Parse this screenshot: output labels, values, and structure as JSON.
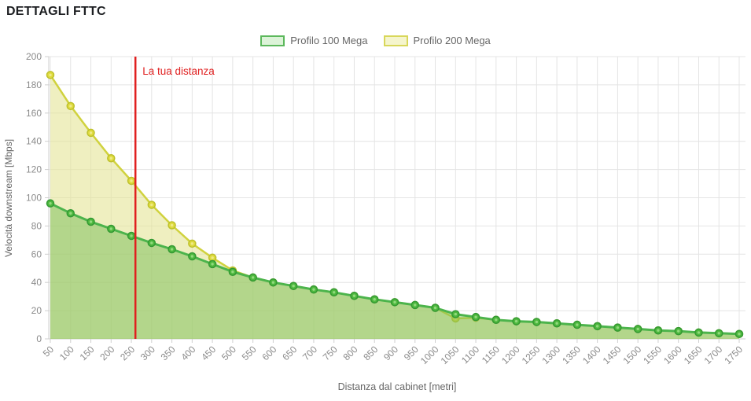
{
  "chart_data": {
    "type": "line",
    "title": "DETTAGLI FTTC",
    "xlabel": "Distanza dal cabinet [metri]",
    "ylabel": "Velocità downstream [Mbps]",
    "ylim": [
      0,
      200
    ],
    "ytick_step": 20,
    "grid": true,
    "legend_position": "top-center",
    "x": [
      50,
      100,
      150,
      200,
      250,
      300,
      350,
      400,
      450,
      500,
      550,
      600,
      650,
      700,
      750,
      800,
      850,
      900,
      950,
      1000,
      1050,
      1100,
      1150,
      1200,
      1250,
      1300,
      1350,
      1400,
      1450,
      1500,
      1550,
      1600,
      1650,
      1700,
      1750
    ],
    "series": [
      {
        "name": "Profilo 100 Mega",
        "color": "#4cb44c",
        "fill": "rgba(120,190,85,0.5)",
        "marker": {
          "fill": "#4eb83e",
          "border": "#339933",
          "core": "#90d97c"
        },
        "values": [
          96,
          89,
          83,
          78,
          73,
          68,
          63.5,
          58.5,
          53,
          47.5,
          43.5,
          40,
          37.5,
          35,
          33,
          30.5,
          28,
          26,
          24,
          22,
          17.5,
          15.5,
          13.5,
          12.5,
          12,
          11,
          10,
          9,
          8,
          7,
          6,
          5.5,
          4.5,
          4,
          3.5
        ]
      },
      {
        "name": "Profilo 200 Mega",
        "color": "#d0d23e",
        "fill": "rgba(228,228,150,0.6)",
        "marker": {
          "fill": "#dfdb3e",
          "border": "#bdc02c",
          "core": "#eeea86"
        },
        "values": [
          187,
          165,
          146,
          128,
          112,
          95,
          80.5,
          67.5,
          57.5,
          48.5,
          43.5,
          40,
          37.5,
          35,
          33,
          30.5,
          28,
          26,
          24,
          22,
          14.5,
          15,
          13.5,
          12.5,
          12,
          11,
          10,
          9,
          8,
          7,
          6,
          5.5,
          4.5,
          4,
          3.5
        ]
      }
    ],
    "annotation": {
      "label": "La tua distanza",
      "x": 260,
      "color": "#e02020"
    }
  },
  "legend": {
    "items": [
      {
        "label": "Profilo 100 Mega",
        "swatch_fill": "#dcf3d8",
        "swatch_border": "#5cb85c"
      },
      {
        "label": "Profilo 200 Mega",
        "swatch_fill": "#f5f5cd",
        "swatch_border": "#d8d75a"
      }
    ]
  },
  "axis": {
    "tick_color": "#8b8b8b",
    "grid_color": "#e4e4e4",
    "axis_line_color": "#cfcfcf",
    "title_color": "#666666"
  }
}
